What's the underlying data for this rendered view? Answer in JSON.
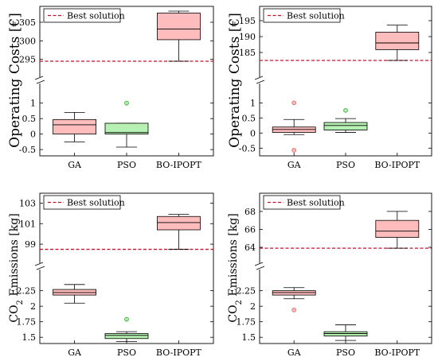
{
  "colors": {
    "ga_fill": "#ffbcbc",
    "ga_stroke": "#c06060",
    "pso_fill": "#b6f0b2",
    "pso_stroke": "#3c8a3c",
    "bo_fill": "#ffbcbc",
    "bo_stroke": "#c06060",
    "best_line": "#c8102e",
    "outlier_ga": "#e57373",
    "outlier_pso": "#4caf50"
  },
  "chart_data": [
    {
      "type": "box",
      "ylabel": "Operating Costs [€]",
      "categories": [
        "GA",
        "PSO",
        "BO-IPOPT"
      ],
      "legend": "Best solution",
      "best_solution": 294.5,
      "lower_range": [
        -0.6,
        1.3
      ],
      "upper_range": [
        293,
        308
      ],
      "lower_ticks": [
        "-0.5",
        "0",
        "0.5",
        "1"
      ],
      "upper_ticks": [
        "295",
        "300",
        "305"
      ],
      "boxes": [
        {
          "name": "GA",
          "whisker_low": -0.25,
          "q1": 0.0,
          "median": 0.3,
          "q3": 0.47,
          "whisker_high": 0.7,
          "outliers": []
        },
        {
          "name": "PSO",
          "whisker_low": -0.42,
          "q1": 0.0,
          "median": 0.05,
          "q3": 0.35,
          "whisker_high": 0.35,
          "outliers": [
            1.0
          ]
        },
        {
          "name": "BO-IPOPT",
          "whisker_low": 294.5,
          "q1": 300.3,
          "median": 303.2,
          "q3": 307.5,
          "whisker_high": 308.0,
          "outliers": []
        }
      ]
    },
    {
      "type": "box",
      "ylabel": "Operating Costs [€]",
      "categories": [
        "GA",
        "PSO",
        "BO-IPOPT"
      ],
      "legend": "Best solution",
      "best_solution": 182.5,
      "lower_range": [
        -0.65,
        1.3
      ],
      "upper_range": [
        180.5,
        198
      ],
      "lower_ticks": [
        "-0.5",
        "0",
        "0.5",
        "1"
      ],
      "upper_ticks": [
        "185",
        "190",
        "195"
      ],
      "boxes": [
        {
          "name": "GA",
          "whisker_low": -0.05,
          "q1": 0.02,
          "median": 0.12,
          "q3": 0.2,
          "whisker_high": 0.45,
          "outliers": [
            1.0,
            -0.57
          ]
        },
        {
          "name": "PSO",
          "whisker_low": 0.02,
          "q1": 0.1,
          "median": 0.25,
          "q3": 0.35,
          "whisker_high": 0.48,
          "outliers": [
            0.75
          ]
        },
        {
          "name": "BO-IPOPT",
          "whisker_low": 182.5,
          "q1": 185.9,
          "median": 188.0,
          "q3": 191.4,
          "whisker_high": 193.6,
          "outliers": []
        }
      ]
    },
    {
      "type": "box",
      "ylabel_pre": "CO",
      "ylabel_sub": "2",
      "ylabel_post": " Emissions [kg]",
      "categories": [
        "GA",
        "PSO",
        "BO-IPOPT"
      ],
      "legend": "Best solution",
      "best_solution": 98.5,
      "lower_range": [
        1.4,
        2.45
      ],
      "upper_range": [
        98,
        103.5
      ],
      "lower_ticks": [
        "1.5",
        "1.75",
        "2",
        "2.25"
      ],
      "upper_ticks": [
        "99",
        "101",
        "103"
      ],
      "boxes": [
        {
          "name": "GA",
          "whisker_low": 2.05,
          "q1": 2.18,
          "median": 2.22,
          "q3": 2.27,
          "whisker_high": 2.35,
          "outliers": []
        },
        {
          "name": "PSO",
          "whisker_low": 1.43,
          "q1": 1.48,
          "median": 1.53,
          "q3": 1.56,
          "whisker_high": 1.59,
          "outliers": [
            1.79
          ]
        },
        {
          "name": "BO-IPOPT",
          "whisker_low": 98.5,
          "q1": 100.4,
          "median": 101.1,
          "q3": 101.7,
          "whisker_high": 101.9,
          "outliers": []
        }
      ]
    },
    {
      "type": "box",
      "ylabel_pre": "CO",
      "ylabel_sub": "2",
      "ylabel_post": " Emissions [kg]",
      "categories": [
        "GA",
        "PSO",
        "BO-IPOPT"
      ],
      "legend": "Best solution",
      "best_solution": 63.9,
      "lower_range": [
        1.4,
        2.45
      ],
      "upper_range": [
        63.2,
        69.5
      ],
      "lower_ticks": [
        "1.5",
        "1.75",
        "2",
        "2.25"
      ],
      "upper_ticks": [
        "64",
        "66",
        "68"
      ],
      "boxes": [
        {
          "name": "GA",
          "whisker_low": 2.12,
          "q1": 2.18,
          "median": 2.22,
          "q3": 2.25,
          "whisker_high": 2.3,
          "outliers": [
            1.94
          ]
        },
        {
          "name": "PSO",
          "whisker_low": 1.45,
          "q1": 1.52,
          "median": 1.56,
          "q3": 1.59,
          "whisker_high": 1.7,
          "outliers": []
        },
        {
          "name": "BO-IPOPT",
          "whisker_low": 63.9,
          "q1": 65.1,
          "median": 65.8,
          "q3": 67.0,
          "whisker_high": 68.0,
          "outliers": []
        }
      ]
    }
  ]
}
